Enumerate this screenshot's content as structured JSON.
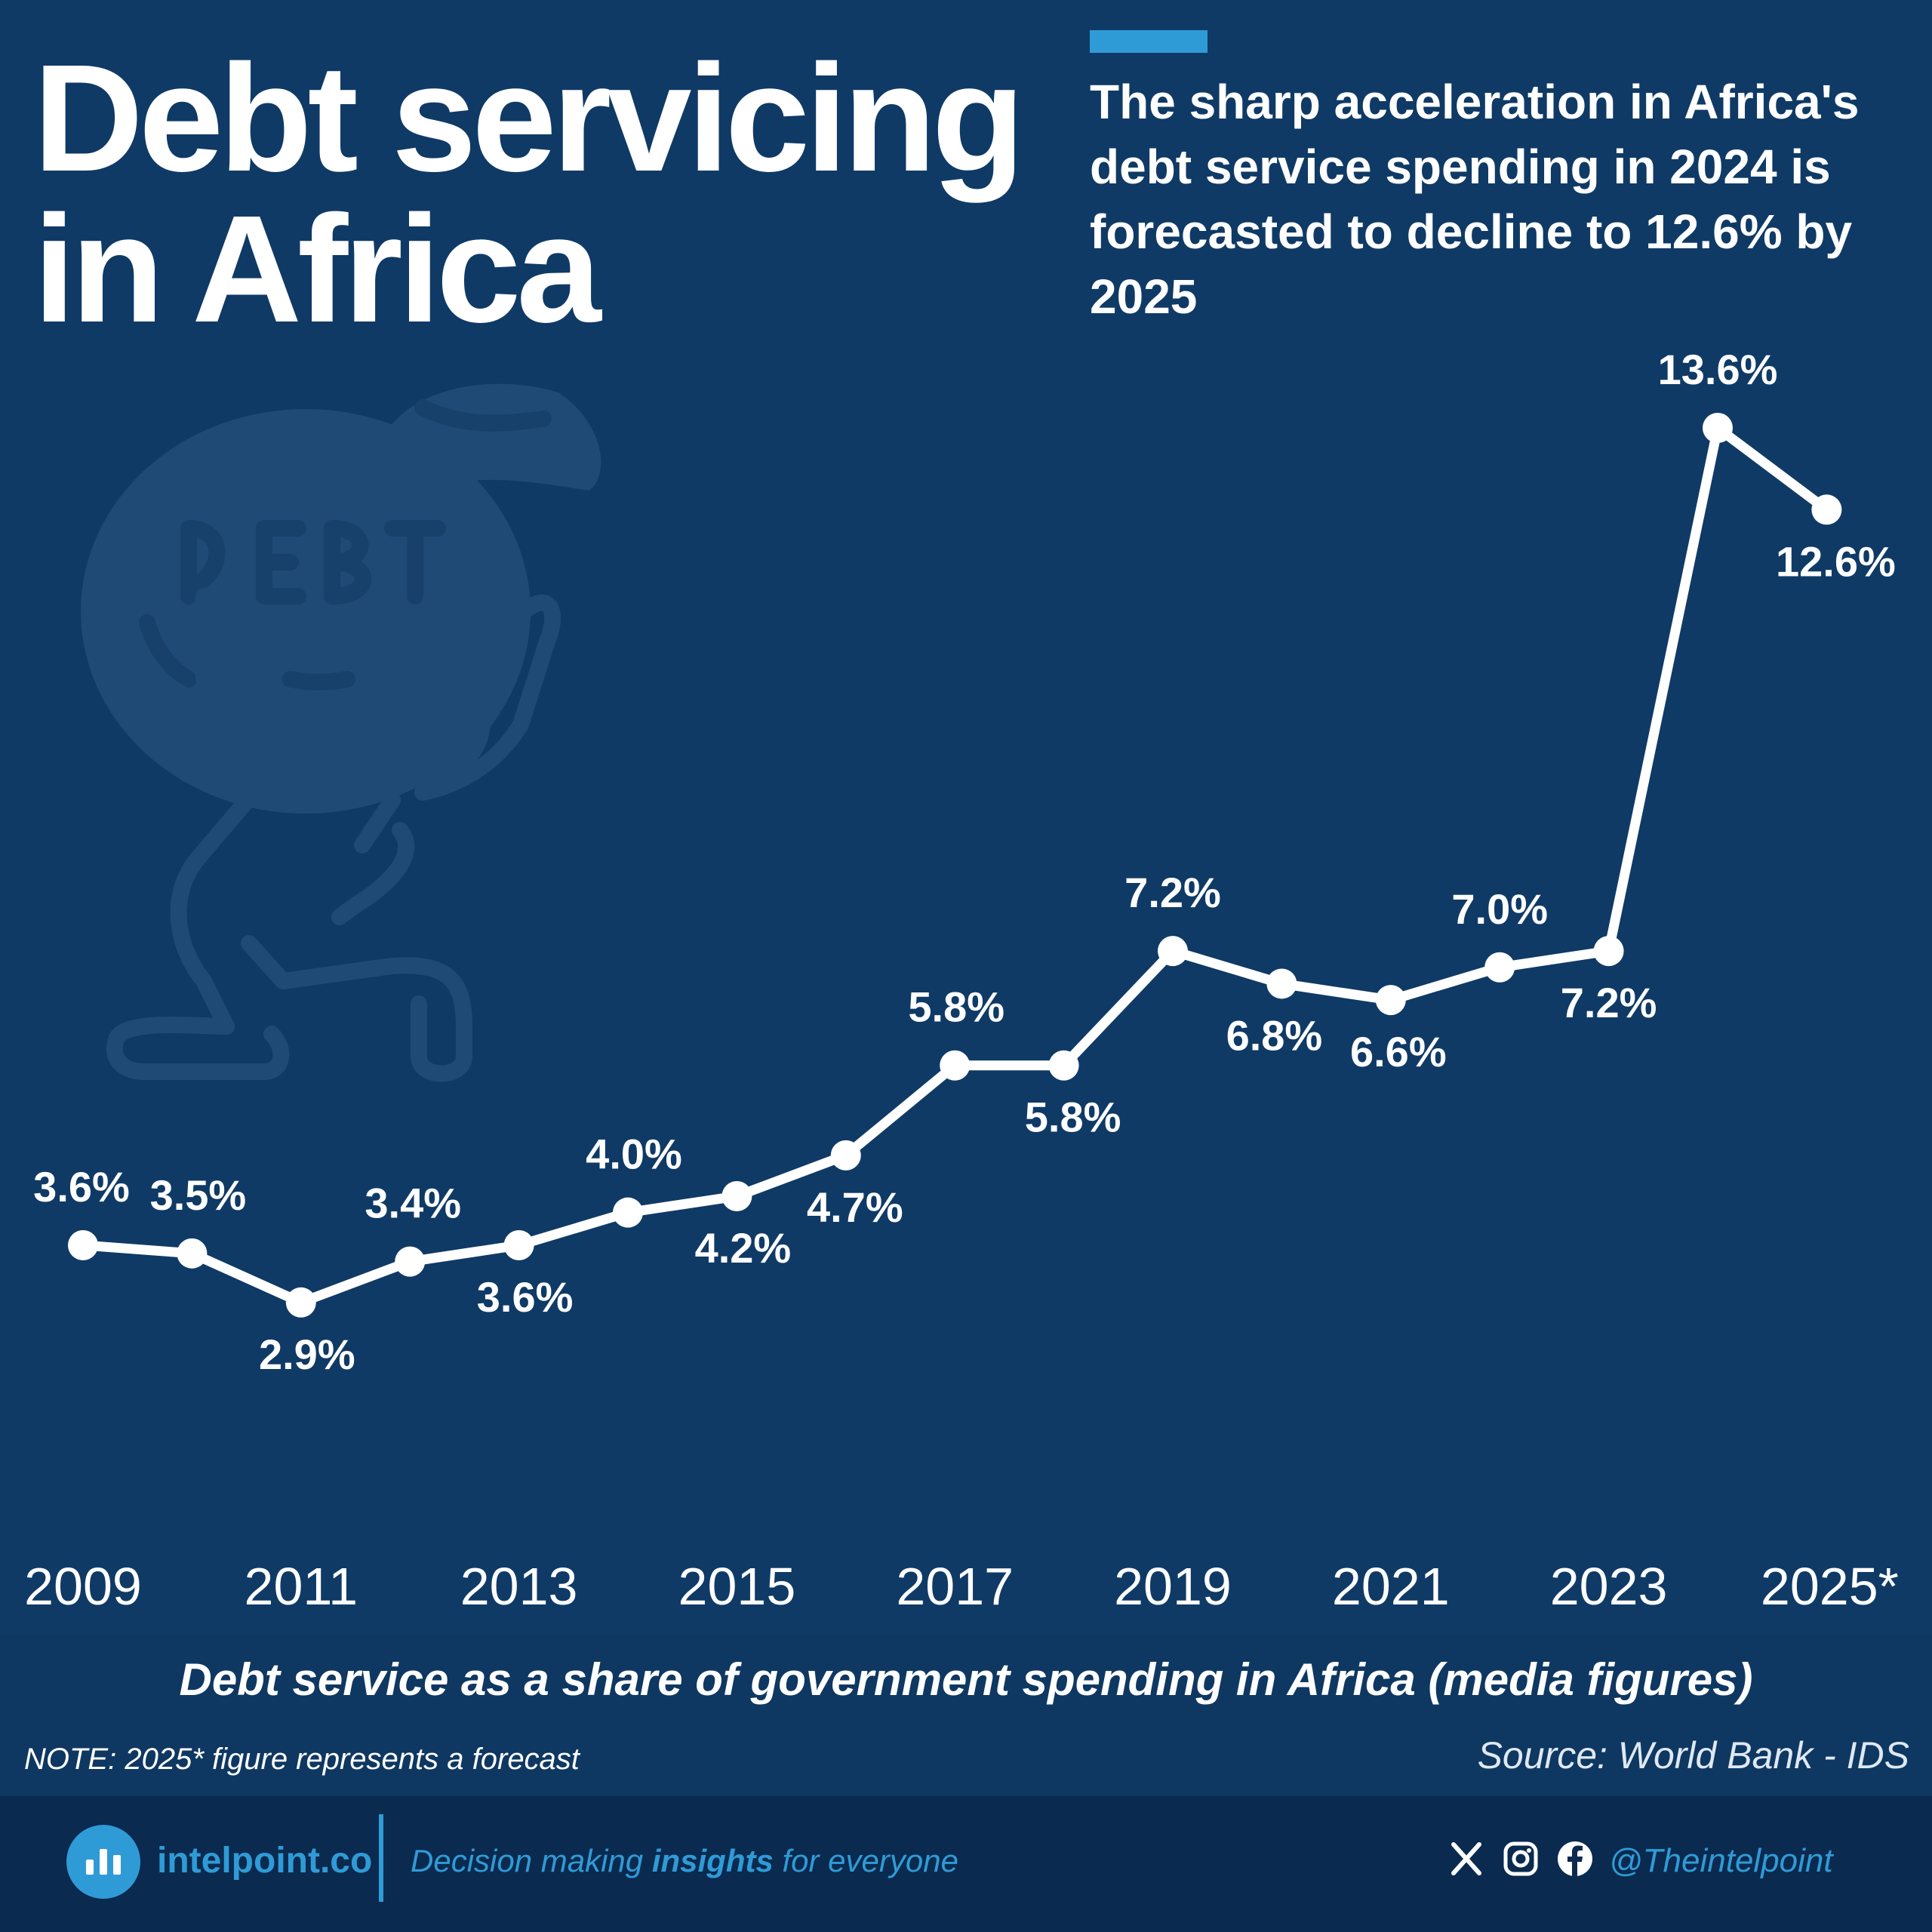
{
  "title_line1": "Debt servicing",
  "title_line2": "in Africa",
  "subtitle": "The sharp acceleration in Africa's debt service spending in 2024 is forecasted to decline to 12.6% by 2025",
  "chart_data": {
    "type": "line",
    "x": [
      2009,
      2010,
      2011,
      2012,
      2013,
      2014,
      2015,
      2016,
      2017,
      2018,
      2019,
      2020,
      2021,
      2022,
      2023,
      2024,
      2025
    ],
    "values": [
      3.6,
      3.5,
      2.9,
      3.4,
      3.6,
      4.0,
      4.2,
      4.7,
      5.8,
      5.8,
      7.2,
      6.8,
      6.6,
      7.0,
      7.2,
      13.6,
      12.6
    ],
    "data_labels": [
      "3.6%",
      "3.5%",
      "2.9%",
      "3.4%",
      "3.6%",
      "4.0%",
      "4.2%",
      "4.7%",
      "5.8%",
      "5.8%",
      "7.2%",
      "6.8%",
      "6.6%",
      "7.0%",
      "7.2%",
      "13.6%",
      "12.6%"
    ],
    "x_tick_labels": [
      "2009",
      "2011",
      "2013",
      "2015",
      "2017",
      "2019",
      "2021",
      "2023",
      "2025*"
    ],
    "xlabel": "Debt service as a share of government spending in Africa (media figures)",
    "ylabel": "",
    "grid": false,
    "legend": "none",
    "line_color": "#ffffff",
    "background_color": "#0f3a66"
  },
  "note": "NOTE: 2025* figure represents a forecast",
  "source": "Source: World Bank - IDS",
  "footer": {
    "brand": "intelpoint.co",
    "tagline_pre": "Decision making ",
    "tagline_bold": "insights",
    "tagline_post": " for everyone",
    "handle": "@Theintelpoint",
    "icons": [
      "logo-bars-icon",
      "x-icon",
      "instagram-icon",
      "facebook-icon"
    ]
  },
  "colors": {
    "background": "#0f3a66",
    "accent": "#2f9bd6",
    "footer": "#0b2a4f",
    "illustration": "#1f4a75"
  }
}
